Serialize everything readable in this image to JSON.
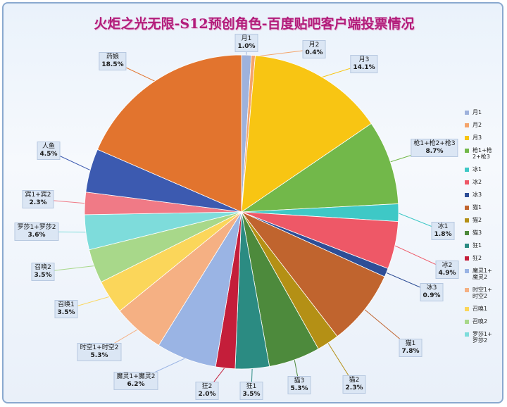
{
  "chart_data": {
    "type": "pie",
    "title": "火炬之光无限-S12预创角色-百度贴吧客户端投票情况",
    "slices": [
      {
        "label": "月1",
        "label_lines": [
          "月1"
        ],
        "value": 1.0,
        "pct": "1.0%",
        "color": "#9eb2dc"
      },
      {
        "label": "月2",
        "label_lines": [
          "月2"
        ],
        "value": 0.4,
        "pct": "0.4%",
        "color": "#f4a46b"
      },
      {
        "label": "月3",
        "label_lines": [
          "月3"
        ],
        "value": 14.1,
        "pct": "14.1%",
        "color": "#f8c513"
      },
      {
        "label": "枪1+枪2+枪3",
        "label_lines": [
          "枪1+枪2+枪3"
        ],
        "value": 8.7,
        "pct": "8.7%",
        "color": "#72b84a"
      },
      {
        "label": "冰1",
        "label_lines": [
          "冰1"
        ],
        "value": 1.8,
        "pct": "1.8%",
        "color": "#3ec8c6"
      },
      {
        "label": "冰2",
        "label_lines": [
          "冰2"
        ],
        "value": 4.9,
        "pct": "4.9%",
        "color": "#ee5867"
      },
      {
        "label": "冰3",
        "label_lines": [
          "冰3"
        ],
        "value": 0.9,
        "pct": "0.9%",
        "color": "#2e4e96"
      },
      {
        "label": "猫1",
        "label_lines": [
          "猫1"
        ],
        "value": 7.8,
        "pct": "7.8%",
        "color": "#c0642e"
      },
      {
        "label": "猫2",
        "label_lines": [
          "猫2"
        ],
        "value": 2.3,
        "pct": "2.3%",
        "color": "#b49015"
      },
      {
        "label": "猫3",
        "label_lines": [
          "猫3"
        ],
        "value": 5.3,
        "pct": "5.3%",
        "color": "#4d8a3c"
      },
      {
        "label": "狂1",
        "label_lines": [
          "狂1"
        ],
        "value": 3.5,
        "pct": "3.5%",
        "color": "#2b8b82"
      },
      {
        "label": "狂2",
        "label_lines": [
          "狂2"
        ],
        "value": 2.0,
        "pct": "2.0%",
        "color": "#c41e3a"
      },
      {
        "label": "魔灵1+魔灵2",
        "label_lines": [
          "魔灵1+魔灵2"
        ],
        "value": 6.2,
        "pct": "6.2%",
        "color": "#9ab4e4"
      },
      {
        "label": "时空1+时空2",
        "label_lines": [
          "时空1+时空2"
        ],
        "value": 5.3,
        "pct": "5.3%",
        "color": "#f5b083"
      },
      {
        "label": "召唤1",
        "label_lines": [
          "召唤1"
        ],
        "value": 3.5,
        "pct": "3.5%",
        "color": "#fbd65a"
      },
      {
        "label": "召唤2",
        "label_lines": [
          "召唤2"
        ],
        "value": 3.5,
        "pct": "3.5%",
        "color": "#a8d88a"
      },
      {
        "label": "罗莎1+罗莎2",
        "label_lines": [
          "罗莎1+罗莎2"
        ],
        "value": 3.6,
        "pct": "3.6%",
        "color": "#7edcdb"
      },
      {
        "label": "宾1+宾2",
        "label_lines": [
          "宾1+宾2"
        ],
        "value": 2.3,
        "pct": "2.3%",
        "color": "#f07a86"
      },
      {
        "label": "人鱼",
        "label_lines": [
          "人鱼"
        ],
        "value": 4.5,
        "pct": "4.5%",
        "color": "#3c5ab0"
      },
      {
        "label": "药娘",
        "label_lines": [
          "药娘"
        ],
        "value": 18.5,
        "pct": "18.5%",
        "color": "#e2742e"
      }
    ],
    "legend": {
      "placement": "right",
      "entries": [
        {
          "text": "月1",
          "color": "#9eb2dc"
        },
        {
          "text": "月2",
          "color": "#f4a46b"
        },
        {
          "text": "月3",
          "color": "#f8c513"
        },
        {
          "text": "枪1+枪\n2+枪3",
          "color": "#72b84a"
        },
        {
          "text": "冰1",
          "color": "#3ec8c6"
        },
        {
          "text": "冰2",
          "color": "#ee5867"
        },
        {
          "text": "冰3",
          "color": "#2e4e96"
        },
        {
          "text": "猫1",
          "color": "#c0642e"
        },
        {
          "text": "猫2",
          "color": "#b49015"
        },
        {
          "text": "猫3",
          "color": "#4d8a3c"
        },
        {
          "text": "狂1",
          "color": "#2b8b82"
        },
        {
          "text": "狂2",
          "color": "#c41e3a"
        },
        {
          "text": "魔灵1+\n魔灵2",
          "color": "#9ab4e4"
        },
        {
          "text": "时空1+\n时空2",
          "color": "#f5b083"
        },
        {
          "text": "召唤1",
          "color": "#fbd65a"
        },
        {
          "text": "召唤2",
          "color": "#a8d88a"
        },
        {
          "text": "罗莎1+\n罗莎2",
          "color": "#7edcdb"
        }
      ]
    }
  }
}
